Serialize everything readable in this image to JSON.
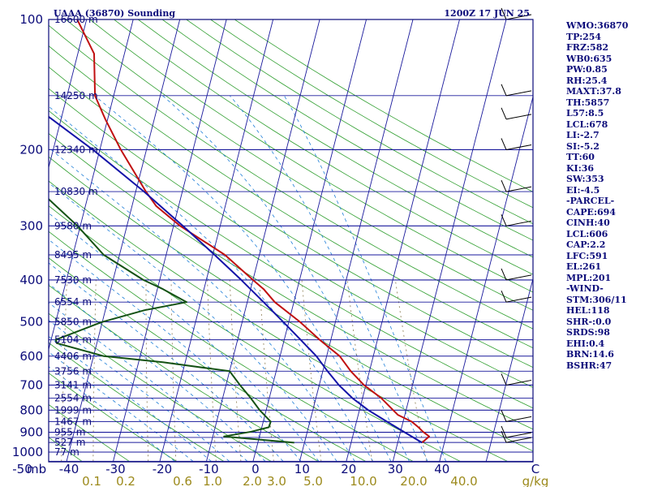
{
  "header": {
    "station": "UAAA (36870) Sounding",
    "time": "1200Z 17 JUN 25"
  },
  "indices": [
    "WMO:36870",
    "TP:254",
    "FRZ:582",
    "WB0:635",
    "PW:0.85",
    "RH:25.4",
    "MAXT:37.8",
    "TH:5857",
    "L57:8.5",
    "LCL:678",
    "LI:-2.7",
    "SI:-5.2",
    "TT:60",
    "KI:36",
    "SW:353",
    "EI:-4.5",
    "-PARCEL-",
    "CAPE:694",
    "CINH:40",
    "LCL:606",
    "CAP:2.2",
    "LFC:591",
    "EL:261",
    "MPL:201",
    "-WIND-",
    "STM:306/11",
    "HEL:118",
    "SHR-:0.0",
    "SRDS:98",
    "EHI:0.4",
    "BRN:14.6",
    "BSHR:47"
  ],
  "colors": {
    "frame": "#0b0b7a",
    "isobar": "#1a1a9c",
    "isotherm": "#1a1a9c",
    "dry_adiabat": "#2e9e2e",
    "moist_adiabat": "#1f7fd8",
    "mixing_ratio": "#8a7a50",
    "temperature": "#c01010",
    "dewpoint": "#145214",
    "parcel": "#1414a8"
  },
  "chart_data": {
    "type": "line",
    "subtype": "skew-t log-p",
    "pressure_axis": {
      "label": "mb",
      "ticks": [
        100,
        200,
        300,
        400,
        500,
        600,
        700,
        800,
        900,
        1000
      ],
      "scale": "log",
      "range": [
        1050,
        100
      ]
    },
    "temperature_axis": {
      "unit_label": "C",
      "ticks": [
        -50,
        -40,
        -30,
        -20,
        -10,
        0,
        10,
        20,
        30,
        40
      ],
      "range": [
        -50,
        50
      ]
    },
    "isobars": [
      100,
      150,
      200,
      250,
      300,
      350,
      400,
      450,
      500,
      550,
      600,
      650,
      700,
      750,
      800,
      850,
      900,
      925,
      950,
      1000,
      1050
    ],
    "height_labels": [
      {
        "p": 100,
        "text": "16600 m"
      },
      {
        "p": 150,
        "text": "14250 m"
      },
      {
        "p": 200,
        "text": "12340 m"
      },
      {
        "p": 250,
        "text": "10830 m"
      },
      {
        "p": 300,
        "text": "9580 m"
      },
      {
        "p": 350,
        "text": "8495 m"
      },
      {
        "p": 400,
        "text": "7530 m"
      },
      {
        "p": 450,
        "text": "6554 m"
      },
      {
        "p": 500,
        "text": "5850 m"
      },
      {
        "p": 550,
        "text": "5104 m"
      },
      {
        "p": 600,
        "text": "4406 m"
      },
      {
        "p": 650,
        "text": "3756 m"
      },
      {
        "p": 700,
        "text": "3141 m"
      },
      {
        "p": 750,
        "text": "2554 m"
      },
      {
        "p": 800,
        "text": "1999 m"
      },
      {
        "p": 850,
        "text": "1467 m"
      },
      {
        "p": 900,
        "text": "955 m"
      },
      {
        "p": 950,
        "text": "527 m"
      },
      {
        "p": 1000,
        "text": "77 m"
      }
    ],
    "mixing_ratio_labels": [
      "0.1",
      "0.2",
      "0.6",
      "1.0",
      "2.0",
      "3.0",
      "5.0",
      "10.0",
      "20.0",
      "40.0",
      "g/kg"
    ],
    "mixing_ratio_values": [
      0.1,
      0.2,
      0.6,
      1.0,
      2.0,
      3.0,
      5.0,
      10.0,
      20.0,
      40.0
    ],
    "series": [
      {
        "key": "temperature",
        "points": [
          [
            951,
            35.2
          ],
          [
            920,
            36.4
          ],
          [
            897,
            34.8
          ],
          [
            876,
            33.6
          ],
          [
            850,
            31.8
          ],
          [
            820,
            28.5
          ],
          [
            750,
            24.0
          ],
          [
            700,
            19.6
          ],
          [
            650,
            16.0
          ],
          [
            600,
            12.8
          ],
          [
            550,
            7.6
          ],
          [
            500,
            2.4
          ],
          [
            450,
            -4.1
          ],
          [
            420,
            -7.2
          ],
          [
            400,
            -10.0
          ],
          [
            350,
            -17.4
          ],
          [
            300,
            -28.6
          ],
          [
            270,
            -34.8
          ],
          [
            250,
            -37.8
          ],
          [
            200,
            -45.5
          ],
          [
            170,
            -50.5
          ],
          [
            150,
            -54.0
          ],
          [
            120,
            -56.5
          ],
          [
            100,
            -62.0
          ]
        ]
      },
      {
        "key": "dewpoint",
        "points": [
          [
            951,
            7.8
          ],
          [
            920,
            -7.6
          ],
          [
            897,
            -2.0
          ],
          [
            876,
            1.5
          ],
          [
            850,
            1.6
          ],
          [
            800,
            -1.4
          ],
          [
            750,
            -4.0
          ],
          [
            700,
            -7.0
          ],
          [
            650,
            -10.0
          ],
          [
            620,
            -24.8
          ],
          [
            600,
            -37.8
          ],
          [
            560,
            -48.6
          ],
          [
            550,
            -49.0
          ],
          [
            500,
            -40.0
          ],
          [
            470,
            -31.6
          ],
          [
            450,
            -23.0
          ],
          [
            420,
            -28.8
          ],
          [
            400,
            -33.5
          ],
          [
            350,
            -43.4
          ],
          [
            300,
            -50.6
          ],
          [
            250,
            -60.4
          ],
          [
            200,
            -68.2
          ],
          [
            170,
            -77.6
          ],
          [
            150,
            -79.4
          ],
          [
            120,
            -83.0
          ],
          [
            100,
            -86.6
          ]
        ]
      },
      {
        "key": "parcel",
        "points": [
          [
            951,
            35.2
          ],
          [
            850,
            26.5
          ],
          [
            800,
            21.9
          ],
          [
            750,
            17.8
          ],
          [
            700,
            14.2
          ],
          [
            650,
            11.0
          ],
          [
            600,
            7.8
          ],
          [
            550,
            3.5
          ],
          [
            500,
            -1.2
          ],
          [
            450,
            -6.5
          ],
          [
            400,
            -12.5
          ],
          [
            350,
            -19.6
          ],
          [
            300,
            -28.0
          ],
          [
            250,
            -38.2
          ],
          [
            200,
            -51.5
          ],
          [
            150,
            -70.0
          ],
          [
            120,
            -85.0
          ],
          [
            100,
            -97.0
          ]
        ]
      }
    ],
    "wind_barbs": [
      {
        "p": 100
      },
      {
        "p": 150
      },
      {
        "p": 170
      },
      {
        "p": 200
      },
      {
        "p": 250
      },
      {
        "p": 300
      },
      {
        "p": 400
      },
      {
        "p": 450
      },
      {
        "p": 700
      },
      {
        "p": 850
      },
      {
        "p": 925
      },
      {
        "p": 950
      }
    ]
  }
}
